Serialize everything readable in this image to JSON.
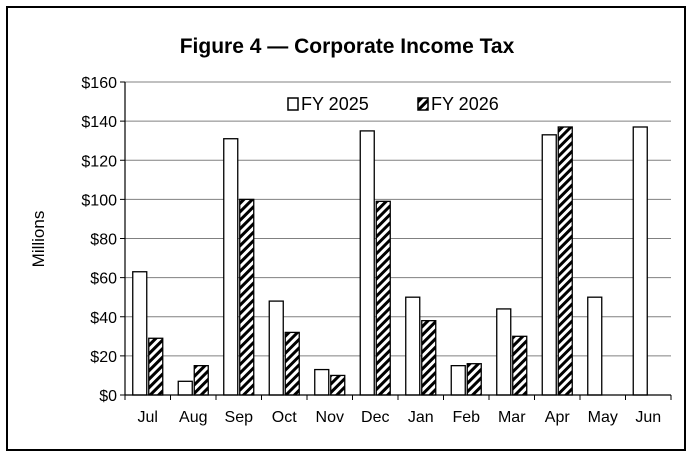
{
  "chart_data": {
    "type": "bar",
    "title": "Figure 4 — Corporate Income Tax",
    "ylabel": "Millions",
    "xlabel": "",
    "ylim": [
      0,
      160
    ],
    "ytick_step": 20,
    "ytick_labels": [
      "$0",
      "$20",
      "$40",
      "$60",
      "$80",
      "$100",
      "$120",
      "$140",
      "$160"
    ],
    "categories": [
      "Jul",
      "Aug",
      "Sep",
      "Oct",
      "Nov",
      "Dec",
      "Jan",
      "Feb",
      "Mar",
      "Apr",
      "May",
      "Jun"
    ],
    "series": [
      {
        "name": "FY 2025",
        "values": [
          63,
          7,
          131,
          48,
          13,
          135,
          50,
          15,
          44,
          133,
          50,
          137
        ],
        "fill": "#ffffff",
        "pattern": "none"
      },
      {
        "name": "FY 2026",
        "values": [
          29,
          15,
          100,
          32,
          10,
          99,
          38,
          16,
          30,
          137,
          null,
          null
        ],
        "fill": "#ffffff",
        "pattern": "diagonal-hatch"
      }
    ],
    "legend_position": "top-center",
    "grid": {
      "horizontal": true,
      "vertical": false
    },
    "colors": {
      "bar_stroke": "#000000",
      "hatch": "#000000",
      "grid": "#808080",
      "background": "#ffffff"
    }
  }
}
